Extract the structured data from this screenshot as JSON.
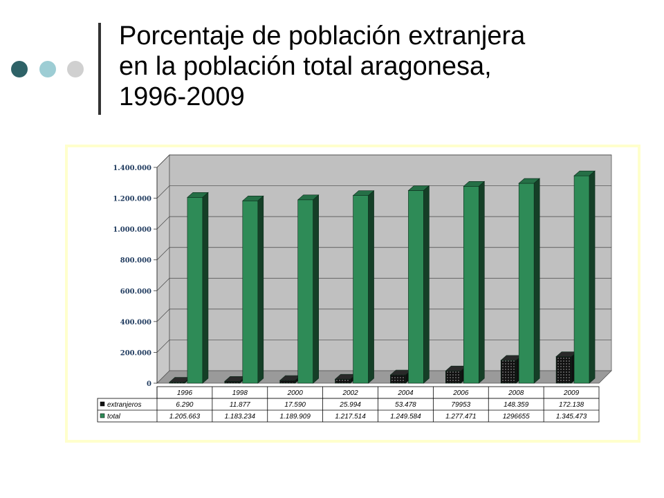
{
  "title": {
    "line1": "Porcentaje de población extranjera",
    "line2": "en la población total aragonesa,",
    "line3": "1996-2009"
  },
  "colors": {
    "accent_dark": "#2e6267",
    "accent_light": "#9dcdd4",
    "accent_gray": "#d0d0d0",
    "plot_bg": "#c0c0c0",
    "frame_border": "#ffffcc",
    "series_total": "#2e8b57",
    "series_extranjeros": "#111111"
  },
  "chart_data": {
    "type": "bar",
    "categories": [
      "1996",
      "1998",
      "2000",
      "2002",
      "2004",
      "2006",
      "2008",
      "2009"
    ],
    "series": [
      {
        "name": "extranjeros",
        "values": [
          6290,
          11877,
          17590,
          25994,
          53478,
          79953,
          148359,
          172138
        ],
        "labels": [
          "6.290",
          "11.877",
          "17.590",
          "25.994",
          "53.478",
          "79953",
          "148.359",
          "172.138"
        ]
      },
      {
        "name": "total",
        "values": [
          1205663,
          1183234,
          1189909,
          1217514,
          1249584,
          1277471,
          1296655,
          1345473
        ],
        "labels": [
          "1.205.663",
          "1.183.234",
          "1.189.909",
          "1.217.514",
          "1.249.584",
          "1.277.471",
          "1296655",
          "1.345.473"
        ]
      }
    ],
    "ylim": [
      0,
      1400000
    ],
    "yticks": [
      "0",
      "200.000",
      "400.000",
      "600.000",
      "800.000",
      "1.000.000",
      "1.200.000",
      "1.400.000"
    ],
    "grid": true,
    "legend": "data-table"
  }
}
